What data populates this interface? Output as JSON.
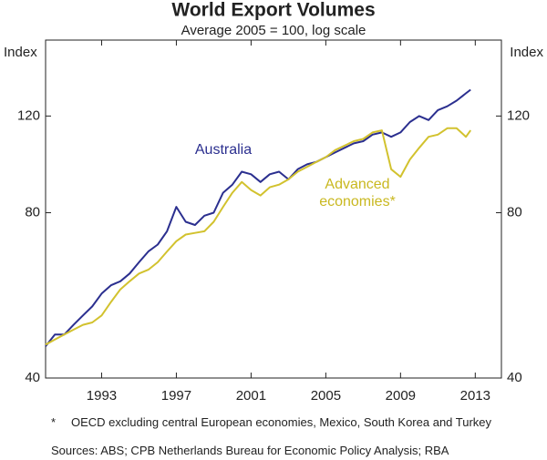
{
  "chart_data": {
    "type": "line",
    "title": "World Export Volumes",
    "subtitle": "Average 2005 = 100, log scale",
    "y_label": "Index",
    "y2_label": "Index",
    "x": [
      1990,
      1990.5,
      1991,
      1991.5,
      1992,
      1992.5,
      1993,
      1993.5,
      1994,
      1994.5,
      1995,
      1995.5,
      1996,
      1996.5,
      1997,
      1997.5,
      1998,
      1998.5,
      1999,
      1999.5,
      2000,
      2000.5,
      2001,
      2001.5,
      2002,
      2002.5,
      2003,
      2003.5,
      2004,
      2004.5,
      2005,
      2005.5,
      2006,
      2006.5,
      2007,
      2007.5,
      2008,
      2008.5,
      2009,
      2009.5,
      2010,
      2010.5,
      2011,
      2011.5,
      2012,
      2012.5,
      2012.75
    ],
    "series": [
      {
        "name": "Australia",
        "color": "#2b2f8f",
        "values": [
          45.7,
          48,
          48,
          50,
          52,
          54,
          57,
          59,
          60,
          62,
          65,
          68,
          70,
          74,
          82,
          77,
          76,
          79,
          80,
          87,
          90,
          95,
          94,
          91,
          94,
          95,
          92,
          96,
          98,
          99,
          101,
          103,
          105,
          107,
          108,
          111,
          112,
          110,
          112,
          117,
          120,
          118,
          123,
          125,
          128,
          132,
          134
        ]
      },
      {
        "name": "Advanced economies*",
        "color": "#d2c22e",
        "values": [
          46,
          47,
          48,
          49,
          50,
          50.5,
          52,
          55,
          58,
          60,
          62,
          63,
          65,
          68,
          71,
          73,
          73.5,
          74,
          77,
          82,
          87,
          91,
          88,
          86,
          89,
          90,
          92,
          95,
          97,
          99,
          101,
          104,
          106,
          108,
          109,
          112,
          113,
          96,
          93,
          100,
          105,
          110,
          111,
          114,
          114,
          110,
          113
        ]
      }
    ],
    "series_labels": [
      "Australia",
      "Advanced",
      "economies*"
    ],
    "xlim": [
      1990,
      2014.4
    ],
    "xticks": [
      1993,
      1997,
      2001,
      2005,
      2009,
      2013
    ],
    "ylim": [
      40,
      165
    ],
    "yticks": [
      40,
      80,
      120
    ],
    "y2lim": [
      40,
      165
    ],
    "y2ticks": [
      40,
      80,
      120
    ],
    "log_scale": true,
    "footnote_marker": "*",
    "footnote": "OECD excluding central European economies, Mexico, South Korea and Turkey",
    "sources": "Sources: ABS; CPB Netherlands Bureau for Economic Policy Analysis; RBA"
  }
}
